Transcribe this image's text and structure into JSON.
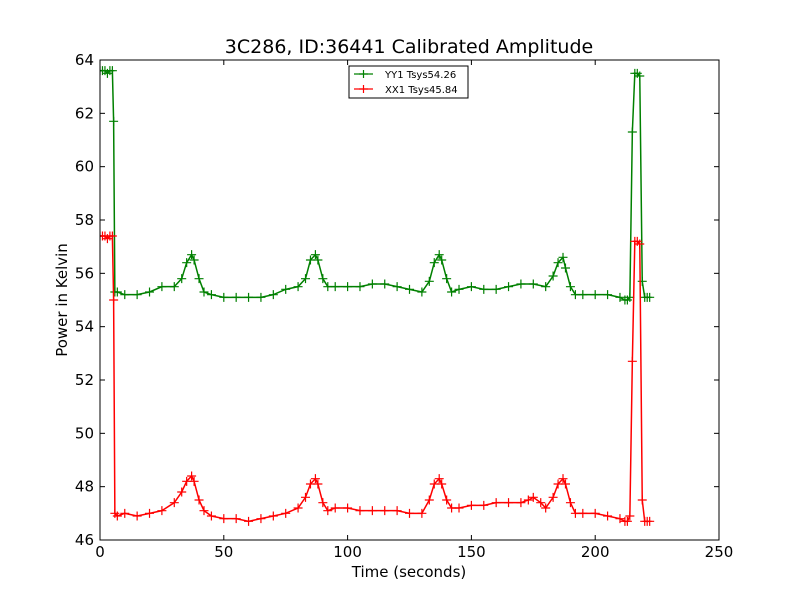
{
  "chart_data": {
    "type": "line",
    "title": "3C286, ID:36441 Calibrated Amplitude",
    "xlabel": "Time (seconds)",
    "ylabel": "Power in Kelvin",
    "xlim": [
      0,
      250
    ],
    "ylim": [
      46,
      64
    ],
    "xticks": [
      0,
      50,
      100,
      150,
      200,
      250
    ],
    "yticks": [
      46,
      48,
      50,
      52,
      54,
      56,
      58,
      60,
      62,
      64
    ],
    "grid": false,
    "legend_position": "top-center",
    "marker": "plus",
    "series": [
      {
        "name": "YY1 Tsys54.26",
        "color": "#008000",
        "x": [
          0,
          1,
          2,
          3,
          4,
          5,
          5.5,
          6,
          7,
          10,
          15,
          20,
          25,
          30,
          33,
          35,
          37,
          38,
          40,
          42,
          45,
          50,
          55,
          60,
          65,
          70,
          75,
          80,
          83,
          85,
          87,
          88,
          90,
          92,
          95,
          100,
          105,
          110,
          115,
          120,
          125,
          130,
          133,
          135,
          137,
          138,
          140,
          142,
          145,
          150,
          155,
          160,
          165,
          170,
          175,
          180,
          183,
          185,
          187,
          188,
          190,
          192,
          195,
          200,
          205,
          210,
          212,
          213,
          214,
          215,
          216,
          217,
          218,
          219,
          220,
          221,
          222
        ],
        "values": [
          63.6,
          63.6,
          63.6,
          63.5,
          63.6,
          63.6,
          61.7,
          55.3,
          55.3,
          55.2,
          55.2,
          55.3,
          55.5,
          55.5,
          55.8,
          56.4,
          56.7,
          56.5,
          55.8,
          55.3,
          55.2,
          55.1,
          55.1,
          55.1,
          55.1,
          55.2,
          55.4,
          55.5,
          55.8,
          56.5,
          56.7,
          56.5,
          55.8,
          55.5,
          55.5,
          55.5,
          55.5,
          55.6,
          55.6,
          55.5,
          55.4,
          55.3,
          55.7,
          56.4,
          56.7,
          56.5,
          55.8,
          55.3,
          55.4,
          55.5,
          55.4,
          55.4,
          55.5,
          55.6,
          55.6,
          55.5,
          55.9,
          56.4,
          56.6,
          56.2,
          55.5,
          55.2,
          55.2,
          55.2,
          55.2,
          55.1,
          55.0,
          55.0,
          55.1,
          61.3,
          63.5,
          63.5,
          63.4,
          55.7,
          55.1,
          55.1,
          55.1
        ]
      },
      {
        "name": "XX1 Tsys45.84",
        "color": "#ff0000",
        "x": [
          0,
          1,
          2,
          3,
          4,
          5,
          5.5,
          6,
          7,
          10,
          15,
          20,
          25,
          30,
          33,
          35,
          37,
          38,
          40,
          42,
          45,
          50,
          55,
          60,
          65,
          70,
          75,
          80,
          83,
          85,
          87,
          88,
          90,
          92,
          95,
          100,
          105,
          110,
          115,
          120,
          125,
          130,
          133,
          135,
          137,
          138,
          140,
          142,
          145,
          150,
          155,
          160,
          165,
          170,
          173,
          175,
          178,
          180,
          183,
          185,
          187,
          188,
          190,
          192,
          195,
          200,
          205,
          210,
          212,
          213,
          214,
          215,
          216,
          217,
          218,
          219,
          220,
          221,
          222
        ],
        "values": [
          57.4,
          57.4,
          57.4,
          57.3,
          57.4,
          57.4,
          55.0,
          47.0,
          46.9,
          47.0,
          46.9,
          47.0,
          47.1,
          47.4,
          47.8,
          48.2,
          48.4,
          48.2,
          47.5,
          47.1,
          46.9,
          46.8,
          46.8,
          46.7,
          46.8,
          46.9,
          47.0,
          47.2,
          47.6,
          48.1,
          48.3,
          48.1,
          47.4,
          47.1,
          47.2,
          47.2,
          47.1,
          47.1,
          47.1,
          47.1,
          47.0,
          47.0,
          47.5,
          48.1,
          48.3,
          48.1,
          47.5,
          47.2,
          47.2,
          47.3,
          47.3,
          47.4,
          47.4,
          47.4,
          47.5,
          47.6,
          47.4,
          47.2,
          47.6,
          48.1,
          48.3,
          48.1,
          47.4,
          47.0,
          47.0,
          47.0,
          46.9,
          46.8,
          46.7,
          46.7,
          46.9,
          52.7,
          57.2,
          57.2,
          57.1,
          47.5,
          46.7,
          46.7,
          46.7
        ]
      }
    ]
  }
}
